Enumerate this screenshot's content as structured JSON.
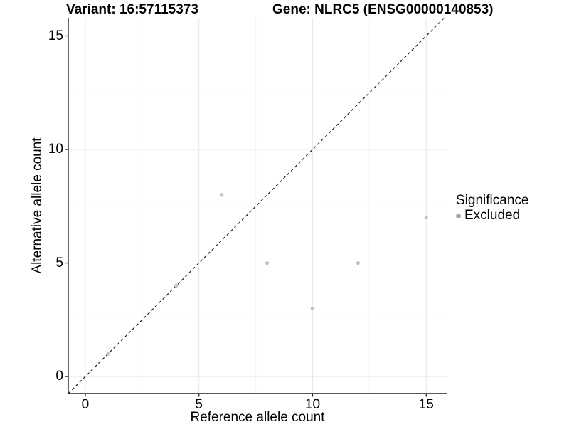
{
  "chart_data": {
    "type": "scatter",
    "title_left": "Variant: 16:57115373",
    "title_right": "Gene: NLRC5 (ENSG00000140853)",
    "xlabel": "Reference allele count",
    "ylabel": "Alternative allele count",
    "xlim": [
      -0.75,
      15.9
    ],
    "ylim": [
      -0.75,
      15.8
    ],
    "x_ticks": [
      0,
      5,
      10,
      15
    ],
    "y_ticks": [
      0,
      5,
      10,
      15
    ],
    "x_minor_gridlines": [
      2.5,
      7.5,
      12.5
    ],
    "y_minor_gridlines": [
      2.5,
      7.5,
      12.5
    ],
    "grid": "on",
    "identity_line": {
      "slope": 1,
      "intercept": 0,
      "style": "dashed",
      "color": "#1a1a1a"
    },
    "series": [
      {
        "name": "Excluded",
        "color": "#c0c0c0",
        "points": [
          [
            1,
            1
          ],
          [
            4,
            4
          ],
          [
            6,
            8
          ],
          [
            8,
            5
          ],
          [
            10,
            3
          ],
          [
            12,
            5
          ],
          [
            15,
            7
          ]
        ]
      }
    ],
    "legend": {
      "position": "right",
      "title": "Significance",
      "entries": [
        {
          "label": "Excluded",
          "color": "#a9a9a9"
        }
      ]
    },
    "colors": {
      "grid_major": "#e8e8e8",
      "grid_minor": "#f4f4f4",
      "axis_line": "#222222",
      "tick_mark": "#222222",
      "point": "#c0c0c0"
    }
  }
}
